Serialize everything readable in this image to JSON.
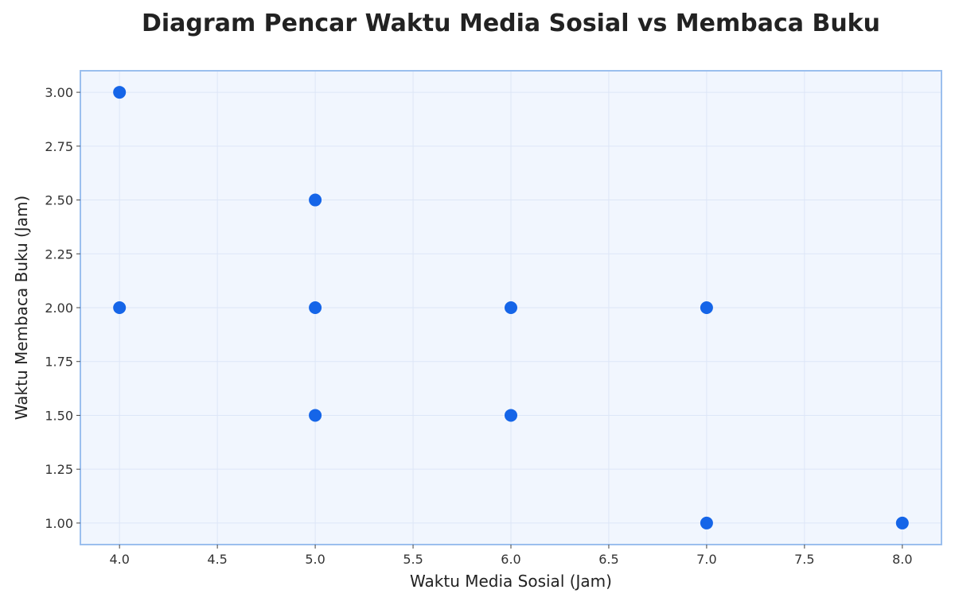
{
  "chart_data": {
    "type": "scatter",
    "title": "Diagram Pencar Waktu Media Sosial vs Membaca Buku",
    "xlabel": "Waktu Media Sosial (Jam)",
    "ylabel": "Waktu Membaca Buku (Jam)",
    "xlim": [
      3.8,
      8.2
    ],
    "ylim": [
      0.9,
      3.1
    ],
    "xticks": [
      "4.0",
      "4.5",
      "5.0",
      "5.5",
      "6.0",
      "6.5",
      "7.0",
      "7.5",
      "8.0"
    ],
    "yticks": [
      "1.00",
      "1.25",
      "1.50",
      "1.75",
      "2.00",
      "2.25",
      "2.50",
      "2.75",
      "3.00"
    ],
    "grid": true,
    "series": [
      {
        "color": "#1565e8",
        "points": [
          {
            "x": 4,
            "y": 3.0
          },
          {
            "x": 4,
            "y": 2.0
          },
          {
            "x": 5,
            "y": 2.5
          },
          {
            "x": 5,
            "y": 2.0
          },
          {
            "x": 5,
            "y": 1.5
          },
          {
            "x": 6,
            "y": 2.0
          },
          {
            "x": 6,
            "y": 1.5
          },
          {
            "x": 7,
            "y": 2.0
          },
          {
            "x": 7,
            "y": 1.0
          },
          {
            "x": 8,
            "y": 1.0
          }
        ]
      }
    ],
    "colors": {
      "plot_background": "#f1f6fe",
      "plot_border": "#9bbfee",
      "grid": "#dde6f7"
    }
  }
}
